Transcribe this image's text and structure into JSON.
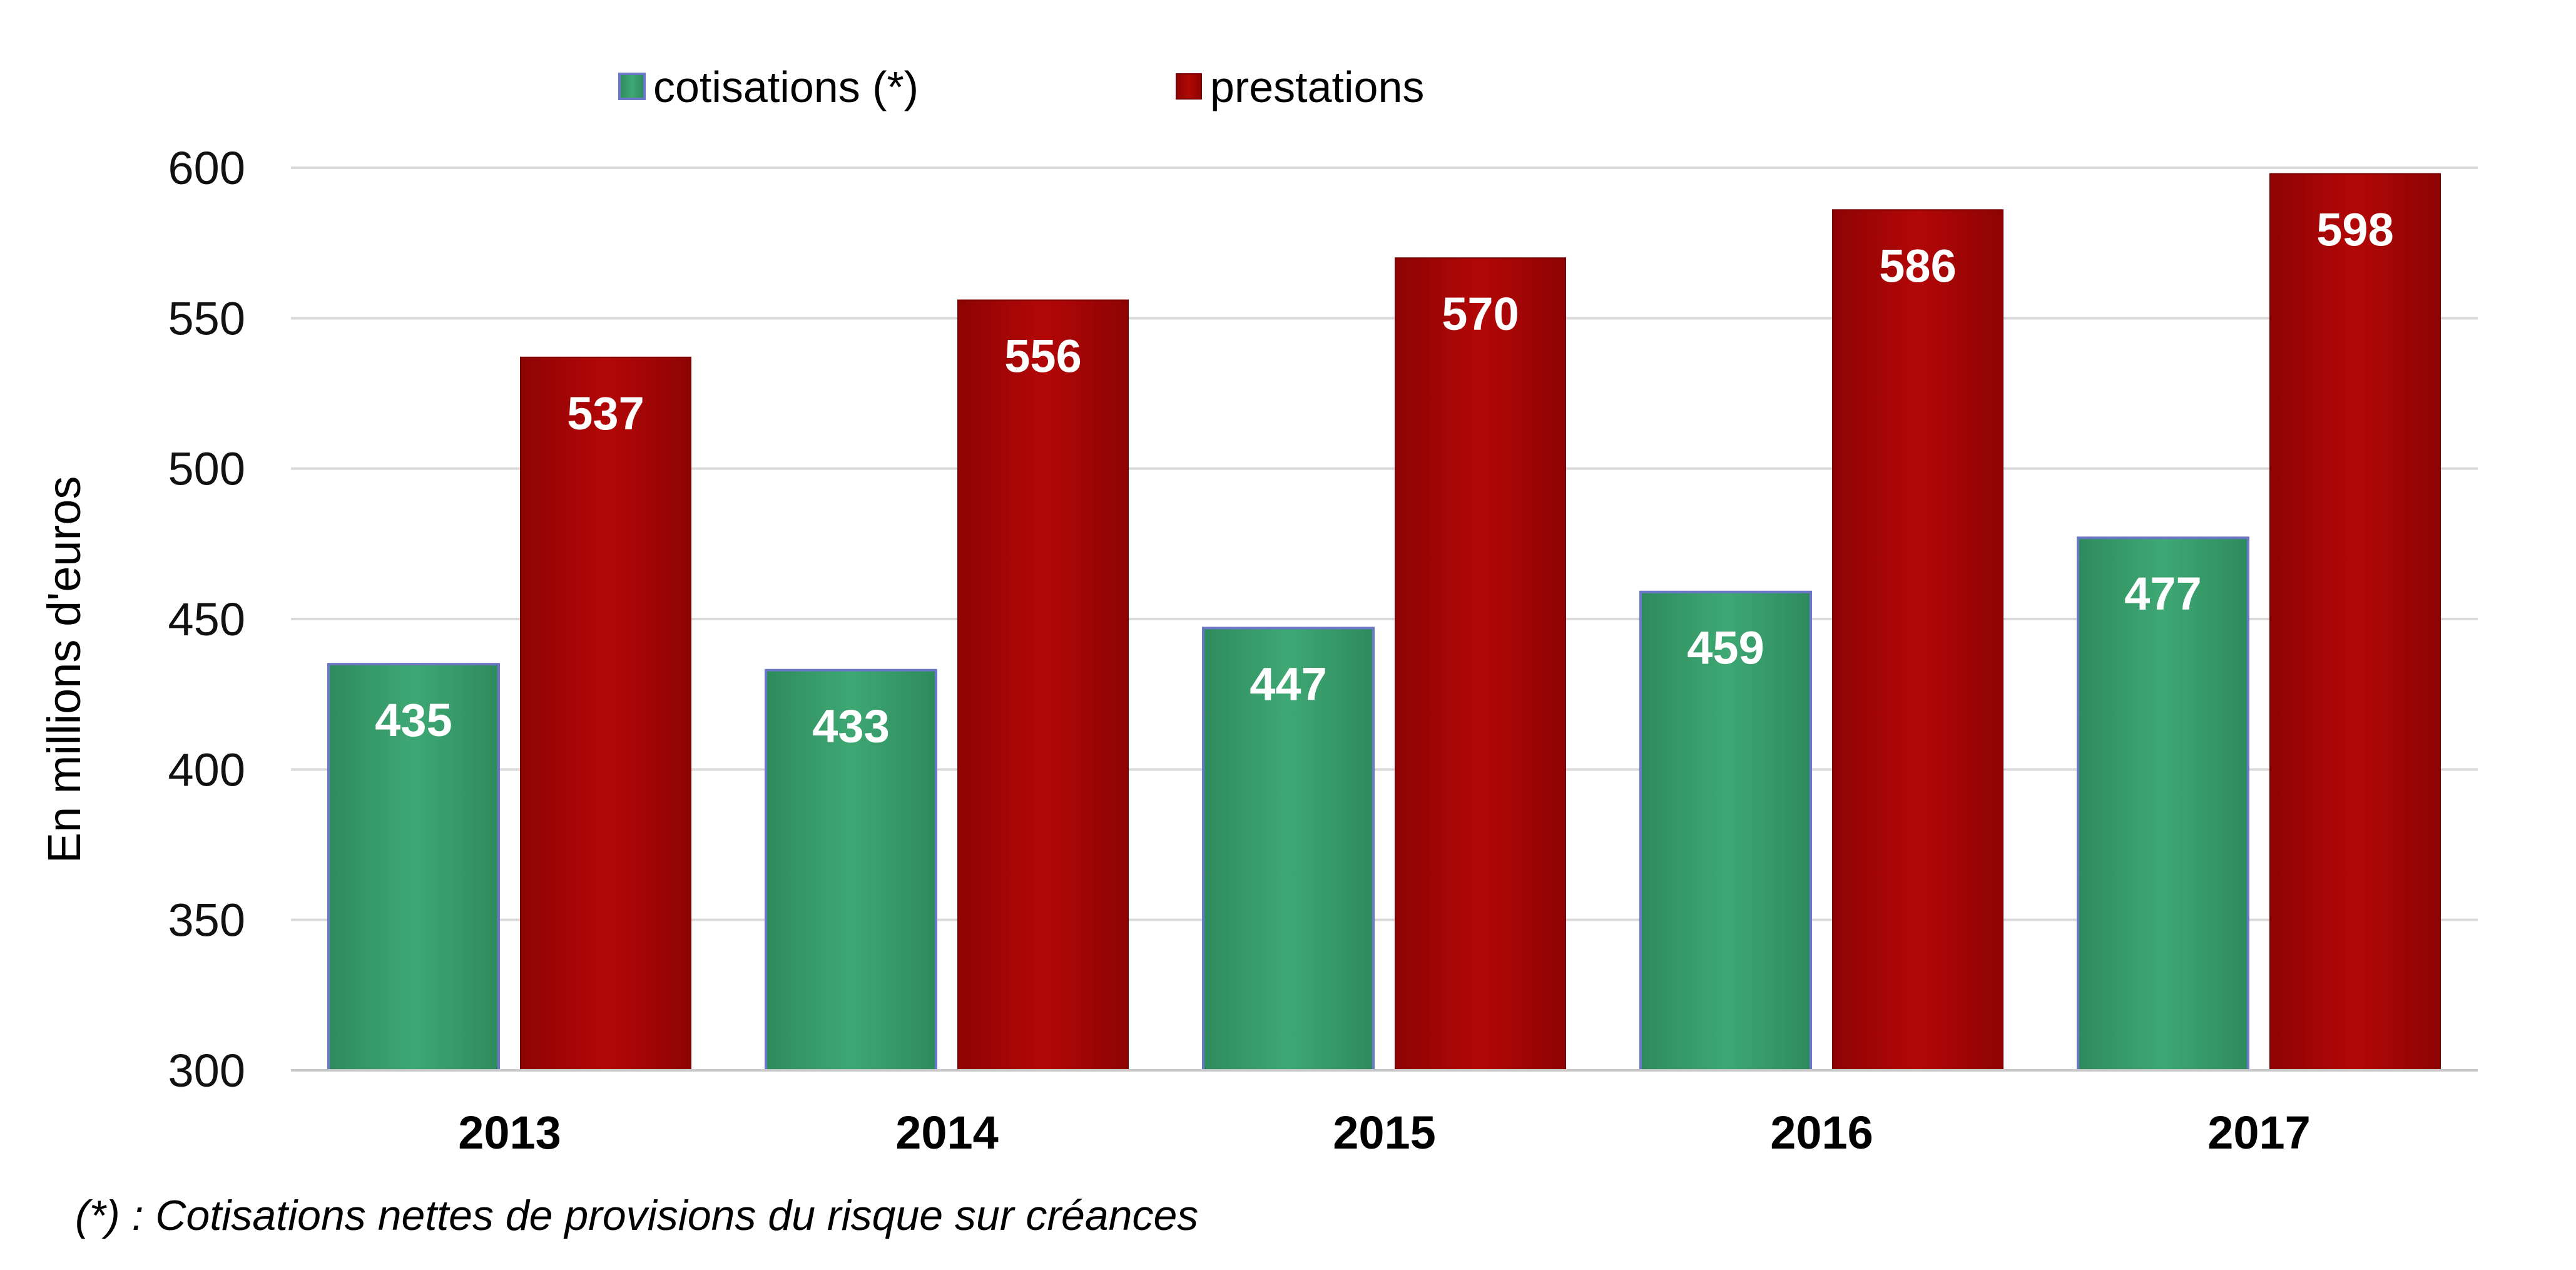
{
  "chart_data": {
    "type": "bar",
    "categories": [
      "2013",
      "2014",
      "2015",
      "2016",
      "2017"
    ],
    "series": [
      {
        "name": "cotisations (*)",
        "color": "#3da672",
        "values": [
          435,
          433,
          447,
          459,
          477
        ]
      },
      {
        "name": "prestations",
        "color": "#ad0606",
        "values": [
          537,
          556,
          570,
          586,
          598
        ]
      }
    ],
    "ylabel": "En millions d'euros",
    "ylim": [
      300,
      600
    ],
    "yticks": [
      300,
      350,
      400,
      450,
      500,
      550,
      600
    ],
    "grid": true,
    "legend": "top-center",
    "footnote": "(*) : Cotisations nettes de provisions du risque sur créances"
  }
}
